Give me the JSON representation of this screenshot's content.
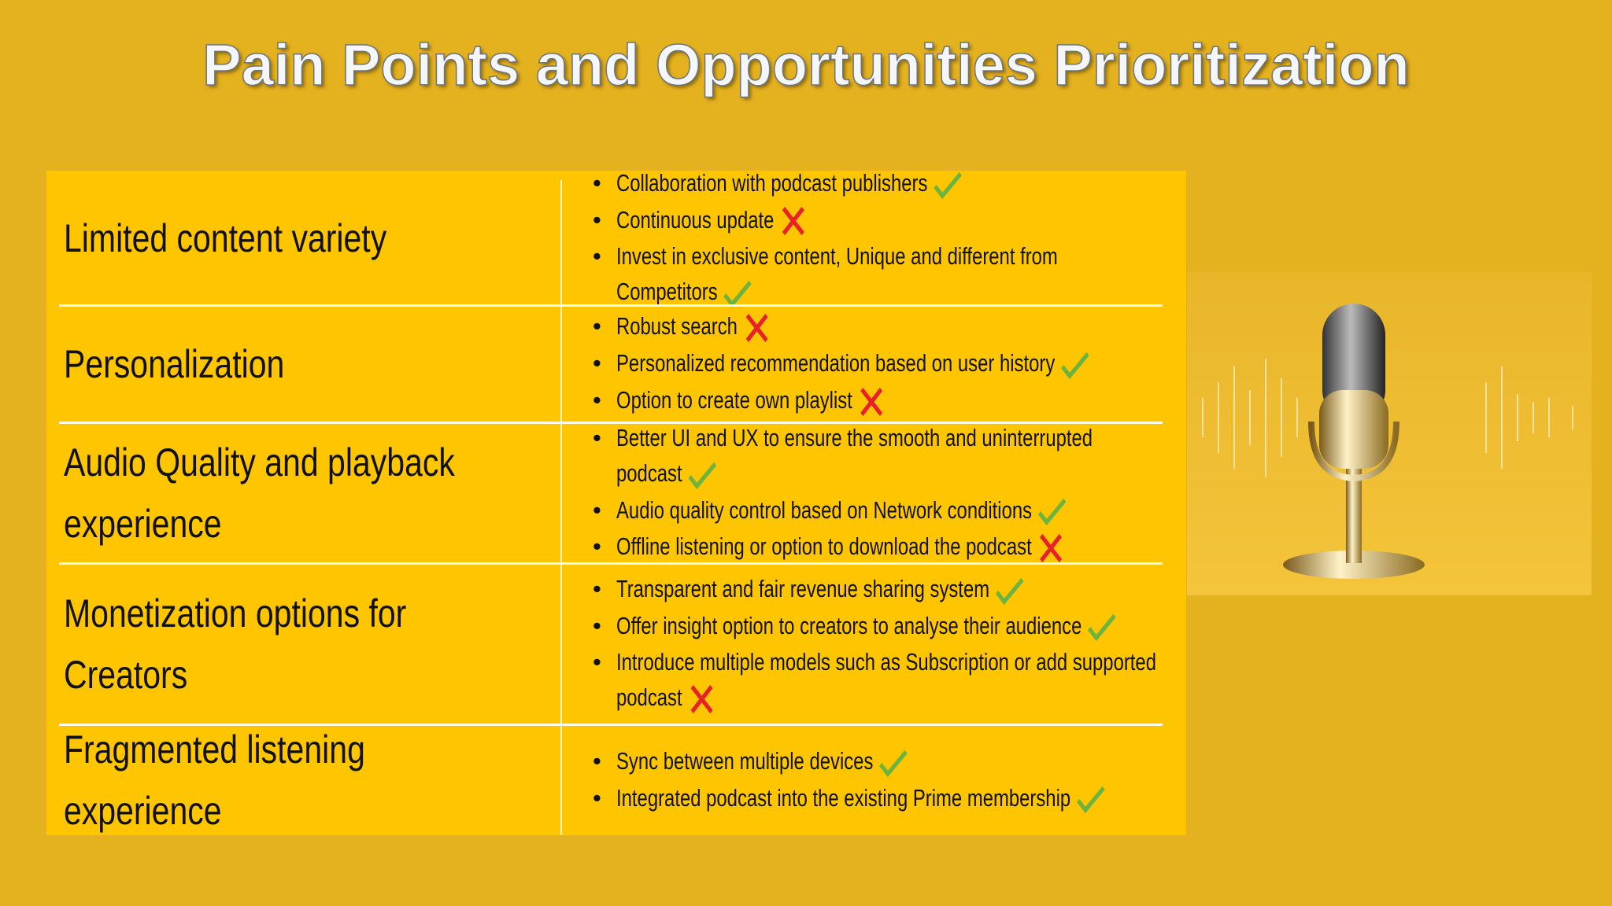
{
  "title": "Pain Points and Opportunities Prioritization",
  "rows": [
    {
      "pain_point": "Limited content variety",
      "items": [
        {
          "text": "Collaboration with podcast publishers",
          "prioritized": true
        },
        {
          "text": "Continuous update",
          "prioritized": false
        },
        {
          "text": "Invest in exclusive content, Unique and different from Competitors",
          "prioritized": true
        }
      ]
    },
    {
      "pain_point": "Personalization",
      "items": [
        {
          "text": "Robust search",
          "prioritized": false
        },
        {
          "text": "Personalized recommendation based on user history",
          "prioritized": true
        },
        {
          "text": "Option to create own playlist",
          "prioritized": false
        }
      ]
    },
    {
      "pain_point": "Audio Quality and playback experience",
      "items": [
        {
          "text": "Better UI and UX to ensure the smooth and uninterrupted podcast",
          "prioritized": true
        },
        {
          "text": "Audio quality control based on Network conditions",
          "prioritized": true
        },
        {
          "text": "Offline listening or option to download the podcast",
          "prioritized": false
        }
      ]
    },
    {
      "pain_point": "Monetization options for Creators",
      "items": [
        {
          "text": "Transparent and fair revenue sharing system",
          "prioritized": true
        },
        {
          "text": "Offer insight option to creators to analyse their audience",
          "prioritized": true
        },
        {
          "text": "Introduce multiple models such as Subscription or add supported podcast",
          "prioritized": false
        }
      ]
    },
    {
      "pain_point": "Fragmented listening experience",
      "items": [
        {
          "text": "Sync between multiple devices",
          "prioritized": true
        },
        {
          "text": "Integrated podcast into the existing Prime membership",
          "prioritized": true
        }
      ]
    }
  ]
}
